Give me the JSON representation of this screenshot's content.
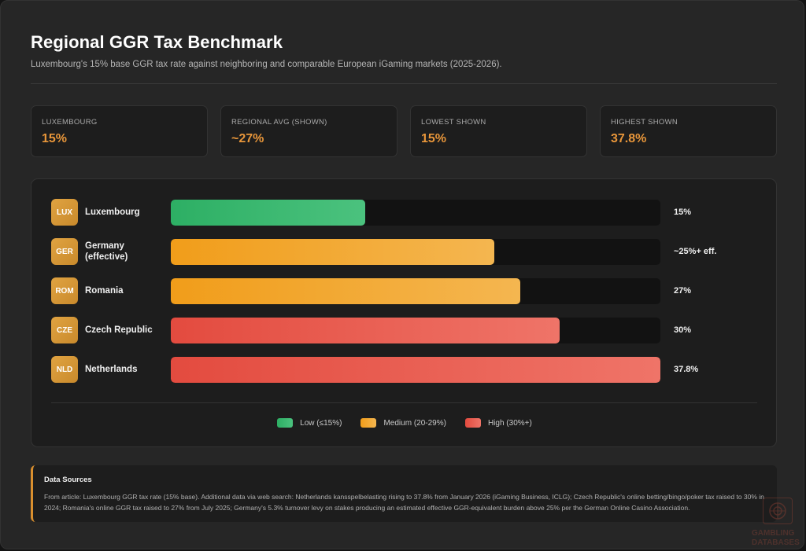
{
  "header": {
    "title": "Regional GGR Tax Benchmark",
    "subtitle": "Luxembourg's 15% base GGR tax rate against neighboring and comparable European iGaming markets (2025-2026)."
  },
  "stats": [
    {
      "label": "LUXEMBOURG",
      "value": "15%"
    },
    {
      "label": "REGIONAL AVG (SHOWN)",
      "value": "~27%"
    },
    {
      "label": "LOWEST SHOWN",
      "value": "15%"
    },
    {
      "label": "HIGHEST SHOWN",
      "value": "37.8%"
    }
  ],
  "chart_data": {
    "type": "bar",
    "orientation": "horizontal",
    "categories": [
      "Luxembourg",
      "Germany (effective)",
      "Romania",
      "Czech Republic",
      "Netherlands"
    ],
    "codes": [
      "LUX",
      "GER",
      "ROM",
      "CZE",
      "NLD"
    ],
    "values": [
      15,
      25,
      27,
      30,
      37.8
    ],
    "value_labels": [
      "15%",
      "~25%+ eff.",
      "27%",
      "30%",
      "37.8%"
    ],
    "tiers": [
      "low",
      "medium",
      "medium",
      "high",
      "high"
    ],
    "xlim": [
      0,
      37.8
    ],
    "legend": [
      {
        "label": "Low (≤15%)",
        "tier": "low",
        "color": "#2daf64"
      },
      {
        "label": "Medium (20-29%)",
        "tier": "medium",
        "color": "#f19d1a"
      },
      {
        "label": "High (30%+)",
        "tier": "high",
        "color": "#e34b3f"
      }
    ],
    "legend_position": "bottom-center"
  },
  "sources": {
    "title": "Data Sources",
    "text": "From article: Luxembourg GGR tax rate (15% base). Additional data via web search: Netherlands kansspelbelasting rising to 37.8% from January 2026 (iGaming Business, ICLG); Czech Republic's online betting/bingo/poker tax raised to 30% in 2024; Romania's online GGR tax raised to 27% from July 2025; Germany's 5.3% turnover levy on stakes producing an estimated effective GGR-equivalent burden above 25% per the German Online Casino Association."
  },
  "watermark": {
    "line1": "GAMBLING",
    "line2": "DATABASES"
  }
}
